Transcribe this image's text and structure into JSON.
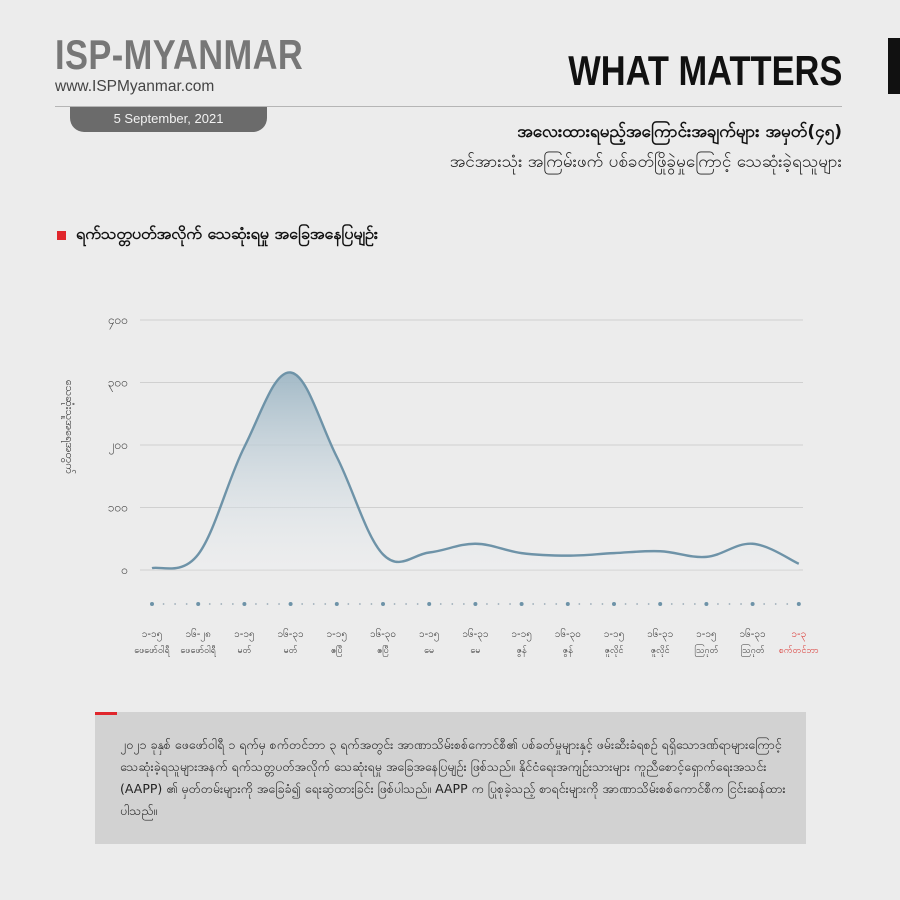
{
  "header": {
    "brand": "ISP-MYANMAR",
    "url": "www.ISPMyanmar.com",
    "date": "5 September, 2021",
    "series_title": "WHAT MATTERS",
    "title_line1": "အလေးထားရမည့်အကြောင်းအချက်များ အမှတ်(၄၅)",
    "title_line2": "အင်အားသုံး အကြမ်းဖက် ပစ်ခတ်ဖြိုခွဲမှုကြောင့် သေဆုံးခဲ့ရသူများ"
  },
  "section": {
    "title": "ရက်သတ္တပတ်အလိုက် သေဆုံးရမှု အခြေအနေပြမျဉ်း"
  },
  "colors": {
    "line": "#6e93a8",
    "fill_top": "#9fb7c5",
    "fill_bottom": "#eef0f2",
    "highlight_label": "#d9302c",
    "accent": "#e0262c"
  },
  "chart_data": {
    "type": "area",
    "ylabel": "သေဆုံးသူအရေအတွက်",
    "ylim": [
      0,
      400
    ],
    "yticks": [
      {
        "v": 0,
        "label": "၀"
      },
      {
        "v": 100,
        "label": "၁၀၀"
      },
      {
        "v": 200,
        "label": "၂၀၀"
      },
      {
        "v": 300,
        "label": "၃၀၀"
      },
      {
        "v": 400,
        "label": "၄၀၀"
      }
    ],
    "categories": [
      {
        "top": "၁-၁၅",
        "bottom": "ဖေဖော်ဝါရီ"
      },
      {
        "top": "၁၆-၂၈",
        "bottom": "ဖေဖော်ဝါရီ"
      },
      {
        "top": "၁-၁၅",
        "bottom": "မတ်"
      },
      {
        "top": "၁၆-၃၁",
        "bottom": "မတ်"
      },
      {
        "top": "၁-၁၅",
        "bottom": "ဧပြီ"
      },
      {
        "top": "၁၆-၃၀",
        "bottom": "ဧပြီ"
      },
      {
        "top": "၁-၁၅",
        "bottom": "မေ"
      },
      {
        "top": "၁၆-၃၁",
        "bottom": "မေ"
      },
      {
        "top": "၁-၁၅",
        "bottom": "ဇွန်"
      },
      {
        "top": "၁၆-၃၀",
        "bottom": "ဇွန်"
      },
      {
        "top": "၁-၁၅",
        "bottom": "ဇူလိုင်"
      },
      {
        "top": "၁၆-၃၁",
        "bottom": "ဇူလိုင်"
      },
      {
        "top": "၁-၁၅",
        "bottom": "ဩဂုတ်"
      },
      {
        "top": "၁၆-၃၁",
        "bottom": "ဩဂုတ်"
      },
      {
        "top": "၁-၃",
        "bottom": "စက်တင်ဘာ",
        "highlight": true
      }
    ],
    "values": [
      3,
      25,
      197,
      316,
      181,
      25,
      28,
      42,
      27,
      23,
      27,
      30,
      21,
      42,
      10
    ]
  },
  "note": {
    "text": "၂၀၂၁ ခုနှစ် ဖေဖော်ဝါရီ ၁ ရက်မှ စက်တင်ဘာ ၃ ရက်အတွင်း အာဏာသိမ်းစစ်ကောင်စီ၏ ပစ်ခတ်မှုများနှင့် ဖမ်းဆီးခံရစဉ် ရရှိသောဒဏ်ရာများကြောင့် သေဆုံးခဲ့ရသူများအနက် ရက်သတ္တပတ်အလိုက် သေဆုံးရမှု အခြေအနေပြမျဉ်း ဖြစ်သည်။ နိုင်ငံရေးအကျဉ်းသားများ ကူညီစောင့်ရှောက်ရေးအသင်း (AAPP) ၏ မှတ်တမ်းများကို အခြေခံ၍ ရေးဆွဲထားခြင်း ဖြစ်ပါသည်။ AAPP က ပြုစုခဲ့သည့် စာရင်းများကို အာဏာသိမ်းစစ်ကောင်စီက ငြင်းဆန်ထားပါသည်။"
  }
}
